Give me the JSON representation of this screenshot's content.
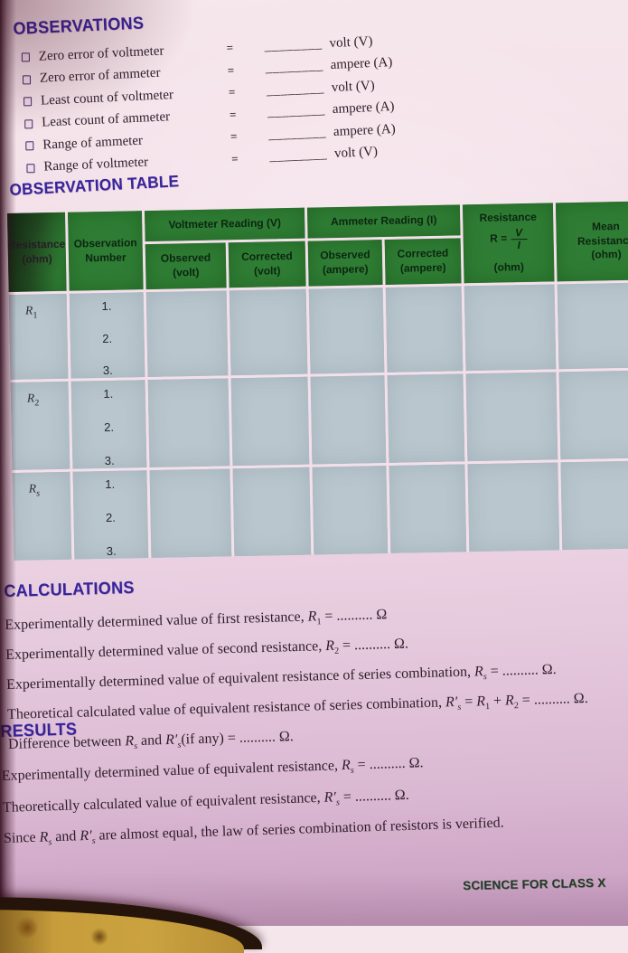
{
  "colors": {
    "heading_blue": "#35259d",
    "table_header_green": "#2f7d34",
    "table_cell_blue": "#b9c6ce",
    "footer_green": "#1d3f24",
    "page_pink": "#eed7e5"
  },
  "observations": {
    "heading": "OBSERVATIONS",
    "items": [
      {
        "label": "Zero error of voltmeter",
        "eq": "=",
        "blank": "________",
        "unit": "volt (V)"
      },
      {
        "label": "Zero error of ammeter",
        "eq": "=",
        "blank": "________",
        "unit": "ampere (A)"
      },
      {
        "label": "Least count of voltmeter",
        "eq": "=",
        "blank": "________",
        "unit": "volt (V)"
      },
      {
        "label": "Least count of ammeter",
        "eq": "=",
        "blank": "________",
        "unit": "ampere (A)"
      },
      {
        "label": "Range of ammeter",
        "eq": "=",
        "blank": "________",
        "unit": "ampere (A)"
      },
      {
        "label": "Range of voltmeter",
        "eq": "=",
        "blank": "________",
        "unit": "volt (V)"
      }
    ]
  },
  "table": {
    "heading": "OBSERVATION TABLE",
    "headers": {
      "resistance": "Resistance\n(ohm)",
      "observation_number": "Observation\nNumber",
      "voltmeter_group": "Voltmeter Reading (V)",
      "ammeter_group": "Ammeter Reading (I)",
      "observed_volt": "Observed\n(volt)",
      "corrected_volt": "Corrected\n(volt)",
      "observed_ampere": "Observed\n(ampere)",
      "corrected_ampere": "Corrected\n(ampere)",
      "r_label": "Resistance",
      "r_eq": "R =",
      "r_num": "V",
      "r_den": "I",
      "r_unit": "(ohm)",
      "mean": "Mean\nResistance\n(ohm)"
    },
    "groups": [
      {
        "label": [
          {
            "s": "R",
            "i": true
          },
          {
            "s": "1",
            "sub": true
          }
        ],
        "obs": [
          "1.",
          "2.",
          "3."
        ]
      },
      {
        "label": [
          {
            "s": "R",
            "i": true
          },
          {
            "s": "2",
            "sub": true
          }
        ],
        "obs": [
          "1.",
          "2.",
          "3."
        ]
      },
      {
        "label": [
          {
            "s": "R",
            "i": true
          },
          {
            "s": "s",
            "i": true,
            "sub": true
          }
        ],
        "obs": [
          "1.",
          "2.",
          "3."
        ]
      }
    ]
  },
  "calculations": {
    "heading": "CALCULATIONS",
    "lines": [
      [
        {
          "s": "Experimentally determined value of first resistance, "
        },
        {
          "s": "R",
          "i": true
        },
        {
          "s": "1",
          "sub": true
        },
        {
          "s": " = .......... Ω"
        }
      ],
      [
        {
          "s": "Experimentally determined value of second resistance, "
        },
        {
          "s": "R",
          "i": true
        },
        {
          "s": "2",
          "sub": true
        },
        {
          "s": " = .......... Ω."
        }
      ],
      [
        {
          "s": "Experimentally determined value of equivalent resistance of series combination, "
        },
        {
          "s": "R",
          "i": true
        },
        {
          "s": "s",
          "i": true,
          "sub": true
        },
        {
          "s": " = .......... Ω."
        }
      ],
      [
        {
          "s": "Theoretical calculated value of equivalent resistance of series combination, "
        },
        {
          "s": "R′",
          "i": true
        },
        {
          "s": "s",
          "i": true,
          "sub": true
        },
        {
          "s": " = "
        },
        {
          "s": "R",
          "i": true
        },
        {
          "s": "1",
          "sub": true
        },
        {
          "s": " + "
        },
        {
          "s": "R",
          "i": true
        },
        {
          "s": "2",
          "sub": true
        },
        {
          "s": " = .......... Ω."
        }
      ],
      [
        {
          "s": "Difference between "
        },
        {
          "s": "R",
          "i": true
        },
        {
          "s": "s",
          "i": true,
          "sub": true
        },
        {
          "s": " and "
        },
        {
          "s": "R′",
          "i": true
        },
        {
          "s": "s",
          "i": true,
          "sub": true
        },
        {
          "s": "(if any) = .......... Ω."
        }
      ]
    ]
  },
  "results": {
    "heading": "RESULTS",
    "lines": [
      [
        {
          "s": "Experimentally determined value of equivalent resistance, "
        },
        {
          "s": "R",
          "i": true
        },
        {
          "s": "s",
          "i": true,
          "sub": true
        },
        {
          "s": " = .......... Ω."
        }
      ],
      [
        {
          "s": "Theoretically calculated value of equivalent resistance, "
        },
        {
          "s": "R′",
          "i": true
        },
        {
          "s": "s",
          "i": true,
          "sub": true
        },
        {
          "s": " = .......... Ω."
        }
      ],
      [
        {
          "s": "Since "
        },
        {
          "s": "R",
          "i": true
        },
        {
          "s": "s",
          "i": true,
          "sub": true
        },
        {
          "s": " and "
        },
        {
          "s": "R′",
          "i": true
        },
        {
          "s": "s",
          "i": true,
          "sub": true
        },
        {
          "s": " are almost equal, the law of series combination of resistors is verified."
        }
      ]
    ]
  },
  "footer": {
    "text": "SCIENCE FOR CLASS X"
  }
}
